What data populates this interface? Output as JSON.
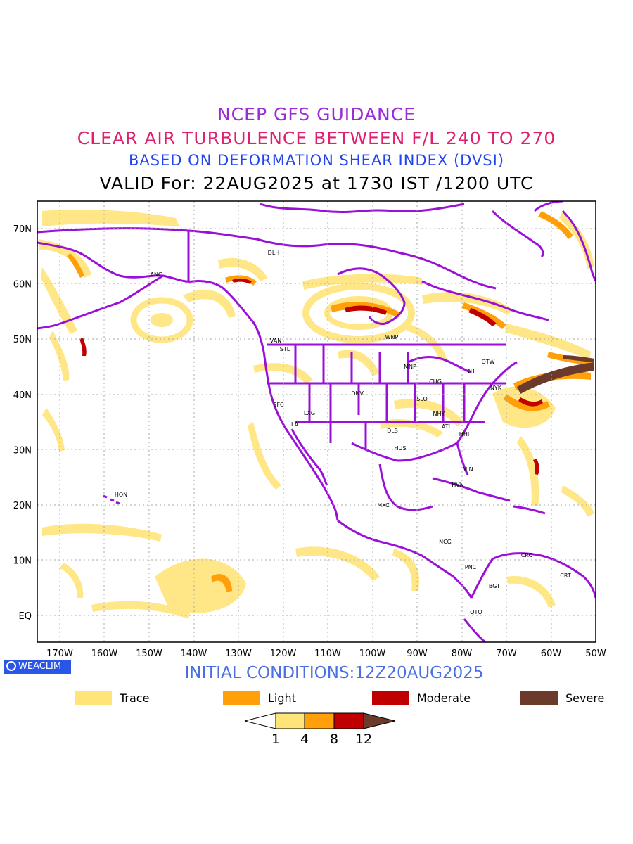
{
  "titles": {
    "line1": "NCEP GFS GUIDANCE",
    "line2": "CLEAR AIR TURBULENCE BETWEEN F/L 240 TO 270",
    "line3": "BASED ON DEFORMATION SHEAR INDEX (DVSI)",
    "line4": "VALID For: 22AUG2025 at 1730 IST /1200 UTC"
  },
  "axes": {
    "lat_labels": [
      "70N",
      "60N",
      "50N",
      "40N",
      "30N",
      "20N",
      "10N",
      "EQ"
    ],
    "lon_labels": [
      "170W",
      "160W",
      "150W",
      "140W",
      "130W",
      "120W",
      "110W",
      "100W",
      "90W",
      "80W",
      "70W",
      "60W",
      "50W"
    ]
  },
  "stations": [
    "DLH",
    "ANC",
    "VAN",
    "STL",
    "WNP",
    "MNP",
    "TNT",
    "OTW",
    "CHG",
    "NYK",
    "DNV",
    "SFC",
    "LXG",
    "SLO",
    "NHY",
    "LA",
    "DLS",
    "ATL",
    "HHI",
    "HUS",
    "MIN",
    "HVN",
    "HON",
    "MXC",
    "NCG",
    "PNC",
    "CRC",
    "CRT",
    "BGT",
    "QTO"
  ],
  "badge": "WEACLIM",
  "initial_conditions": "INITIAL CONDITIONS:12Z20AUG2025",
  "legend": [
    {
      "label": "Trace",
      "color": "#ffe47a"
    },
    {
      "label": "Light",
      "color": "#ff9f0a"
    },
    {
      "label": "Moderate",
      "color": "#c00000"
    },
    {
      "label": "Severe",
      "color": "#6b3a2a"
    }
  ],
  "colorbar_ticks": [
    "1",
    "4",
    "8",
    "12"
  ],
  "colors": {
    "coastline": "#9b10d8",
    "grid": "#aaaaaa"
  }
}
